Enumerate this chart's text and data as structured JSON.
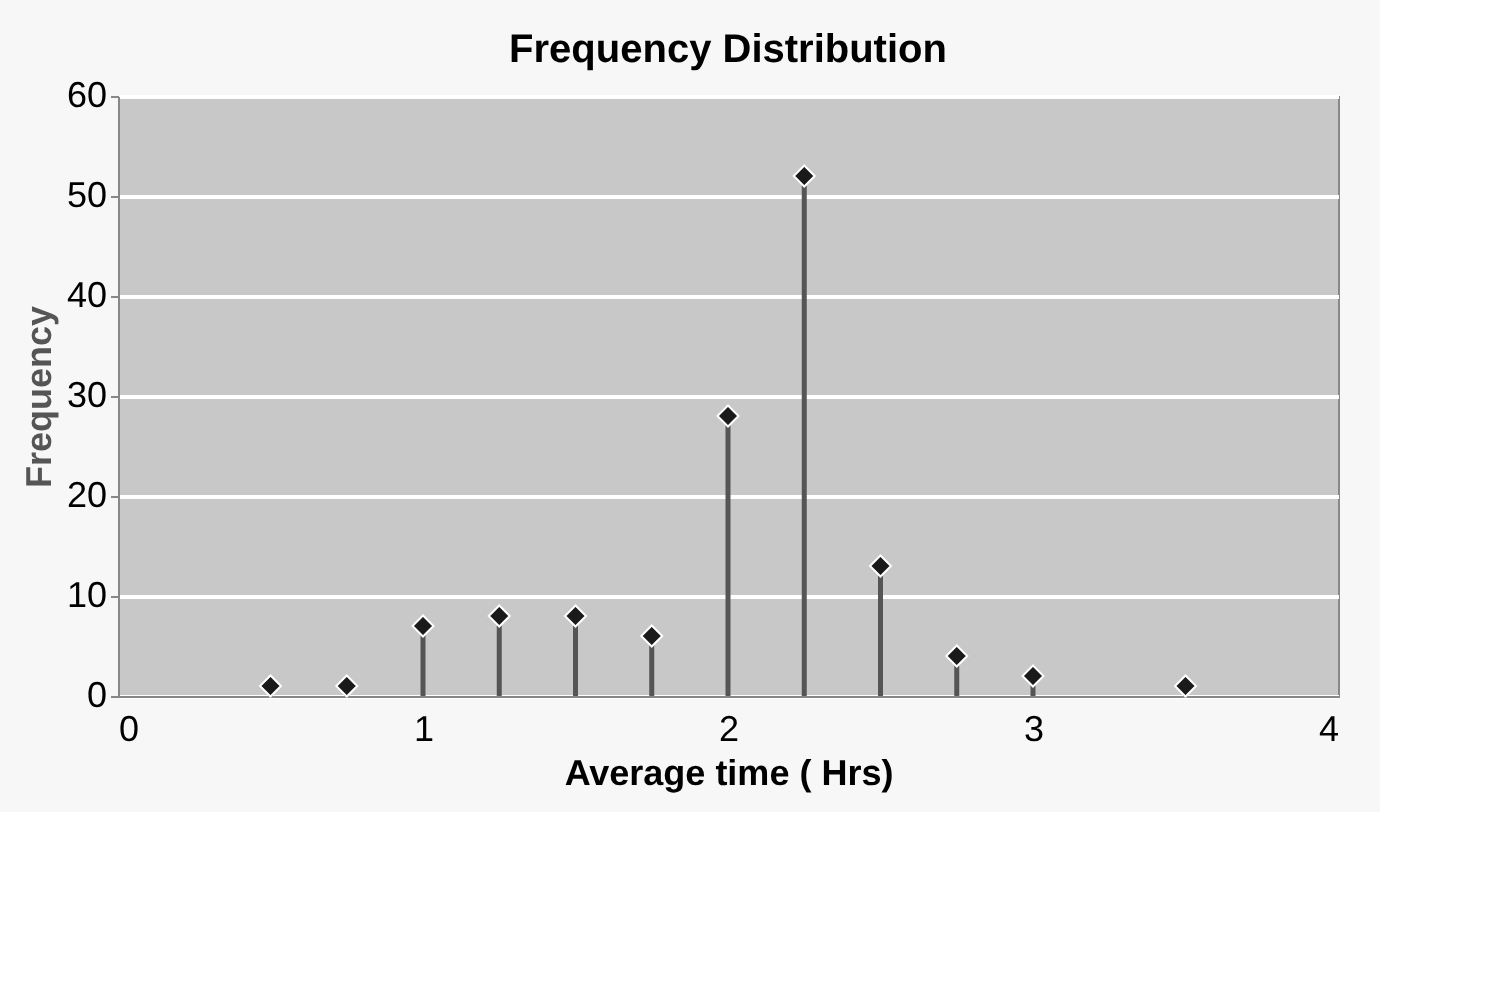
{
  "chart_data": {
    "type": "lollipop",
    "title": "Frequency Distribution",
    "xlabel": "Average time ( Hrs)",
    "ylabel": "Frequency",
    "x": [
      0.5,
      0.75,
      1.0,
      1.25,
      1.5,
      1.75,
      2.0,
      2.25,
      2.5,
      2.75,
      3.0,
      3.5
    ],
    "values": [
      1,
      1,
      7,
      8,
      8,
      6,
      28,
      52,
      13,
      4,
      2,
      1
    ],
    "color": "#1a1a1a",
    "xlim": [
      0,
      4
    ],
    "xticks": [
      0,
      1,
      2,
      3,
      4
    ],
    "ylim": [
      0,
      60
    ],
    "yticks": [
      0,
      10,
      20,
      30,
      40,
      50,
      60
    ],
    "grid": "y",
    "marker": "diamond"
  }
}
